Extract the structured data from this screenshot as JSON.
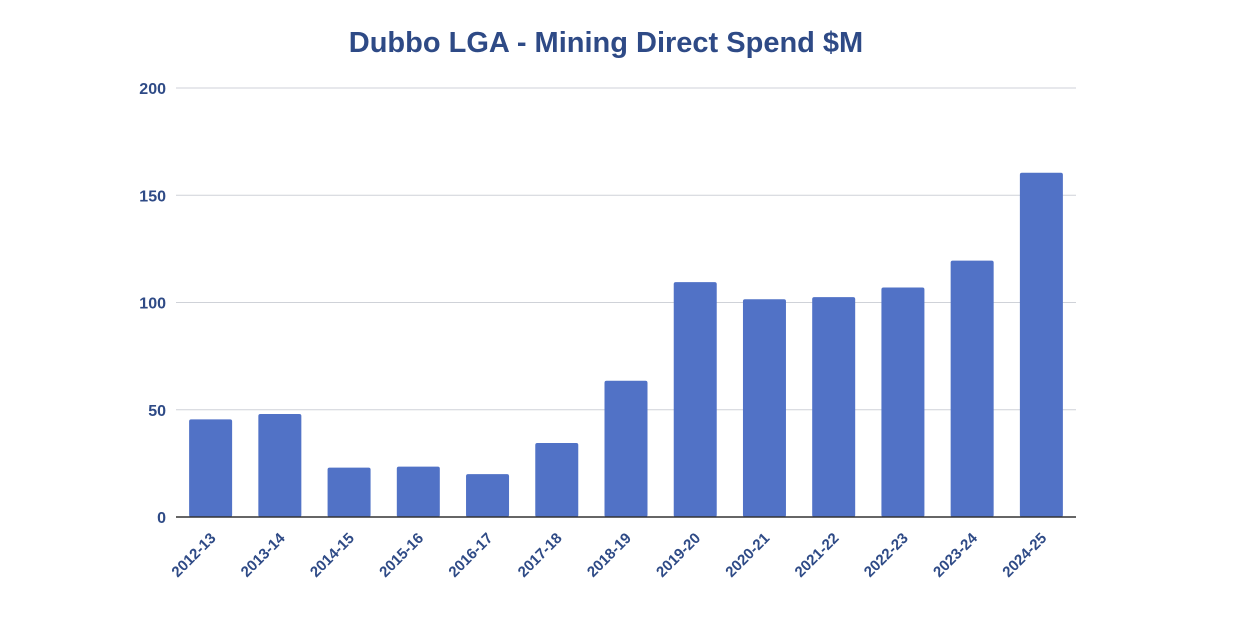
{
  "chart_data": {
    "type": "bar",
    "title": "Dubbo LGA - Mining Direct Spend $M",
    "xlabel": "",
    "ylabel": "",
    "categories": [
      "2012-13",
      "2013-14",
      "2014-15",
      "2015-16",
      "2016-17",
      "2017-18",
      "2018-19",
      "2019-20",
      "2020-21",
      "2021-22",
      "2022-23",
      "2023-24",
      "2024-25"
    ],
    "values": [
      45.5,
      48,
      23,
      23.5,
      20,
      34.5,
      63.5,
      109.5,
      101.5,
      102.5,
      107,
      119.5,
      160.5
    ],
    "ylim": [
      0,
      200
    ],
    "yticks": [
      0,
      50,
      100,
      150,
      200
    ],
    "grid": true,
    "legend": "none",
    "bar_color": "#5172c6"
  }
}
